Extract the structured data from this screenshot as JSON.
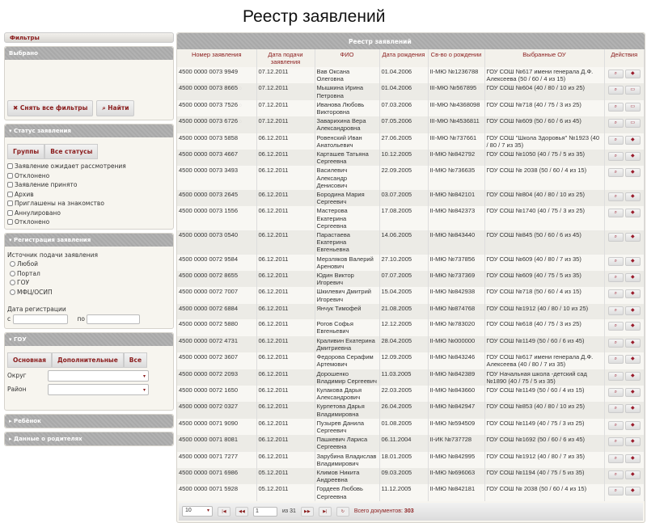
{
  "overlay_title": "Реестр заявлений",
  "filters": {
    "title": "Фильтры",
    "selected": {
      "title": "Выбрано",
      "clear_label": "Снять все фильтры",
      "find_label": "Найти"
    },
    "status": {
      "title": "Статус заявления",
      "groups_label": "Группы",
      "all_label": "Все статусы",
      "items": [
        "Заявление ожидает рассмотрения",
        "Отклонено",
        "Заявление принято",
        "Архив",
        "Приглашены на знакомство",
        "Аннулировано",
        "Отклонено"
      ]
    },
    "registration": {
      "title": "Регистрация заявления",
      "source_label": "Источник подачи заявления",
      "sources": [
        "Любой",
        "Портал",
        "ГОУ",
        "МФЦ/ОСИП"
      ],
      "date_label": "Дата регистрации",
      "from_label": "с",
      "to_label": "по",
      "from_value": "",
      "to_value": ""
    },
    "gou": {
      "title": "ГОУ",
      "tabs": [
        "Основная",
        "Дополнительные",
        "Все"
      ],
      "okrug_label": "Округ",
      "rayon_label": "Район",
      "okrug_value": "",
      "rayon_value": ""
    },
    "child": {
      "title": "Ребёнок"
    },
    "parents": {
      "title": "Данные о родителях"
    }
  },
  "registry": {
    "title": "Реестр заявлений",
    "columns": [
      "Номер заявления",
      "Дата подачи заявления",
      "ФИО",
      "Дата рождения",
      "Св-во о рождении",
      "Выбранные ОУ",
      "Действия"
    ],
    "rows": [
      [
        "4500 0000 0073 9949",
        "07.12.2011",
        "Вав Оксана Олеговна",
        "01.04.2006",
        "II-МЮ №1236788",
        "ГОУ СОШ №617 имени генерала Д.Ф. Алексеева (50 / 60 / 4 из 15)",
        false
      ],
      [
        "4500 0000 0073 8665",
        "07.12.2011",
        "Мышкина Ирина Петровна",
        "01.04.2006",
        "III-МЮ №567895",
        "ГОУ СОШ №604 (40 / 80 / 10 из 25)",
        true
      ],
      [
        "4500 0000 0073 7526",
        "07.12.2011",
        "Иванова Любовь Викторовна",
        "07.03.2006",
        "III-МЮ №4368098",
        "ГОУ СОШ №718 (40 / 75 / 3 из 25)",
        true
      ],
      [
        "4500 0000 0073 6726",
        "07.12.2011",
        "Заварихина Вера Александровна",
        "07.05.2006",
        "III-МЮ №4536811",
        "ГОУ СОШ №609 (50 / 60 / 6 из 45)",
        true
      ],
      [
        "4500 0000 0073 5858",
        "06.12.2011",
        "Ровенский Иван Анатольевич",
        "27.06.2005",
        "III-МЮ №737661",
        "ГОУ СОШ \"Школа Здоровья\" №1923 (40 / 80 / 7 из 35)",
        false
      ],
      [
        "4500 0000 0073 4667",
        "06.12.2011",
        "Карташев Татьяна Сергеевна",
        "10.12.2005",
        "II-МЮ №842792",
        "ГОУ СОШ №1050 (40 / 75 / 5 из 35)",
        false
      ],
      [
        "4500 0000 0073 3493",
        "06.12.2011",
        "Василевич Александр Денисович",
        "22.09.2005",
        "II-МЮ №736635",
        "ГОУ СОШ № 2038 (50 / 60 / 4 из 15)",
        false
      ],
      [
        "4500 0000 0073 2645",
        "06.12.2011",
        "Бородина Мария Сергеевич",
        "03.07.2005",
        "II-МЮ №842101",
        "ГОУ СОШ №804 (40 / 80 / 10 из 25)",
        false
      ],
      [
        "4500 0000 0073 1556",
        "06.12.2011",
        "Мастерова Екатерина Сергеевна",
        "17.08.2005",
        "II-МЮ №842373",
        "ГОУ СОШ №1740 (40 / 75 / 3 из 25)",
        false
      ],
      [
        "4500 0000 0073 0540",
        "06.12.2011",
        "Парастаева Екатерина Евгеньевна",
        "14.06.2005",
        "II-МЮ №843440",
        "ГОУ СОШ №845 (50 / 60 / 6 из 45)",
        false
      ],
      [
        "4500 0000 0072 9584",
        "06.12.2011",
        "Мерзляков Валерий Аренович",
        "27.10.2005",
        "II-МЮ №737856",
        "ГОУ СОШ №609 (40 / 80 / 7 из 35)",
        false
      ],
      [
        "4500 0000 0072 8655",
        "06.12.2011",
        "Юдин Виктор Игоревич",
        "07.07.2005",
        "II-МЮ №737369",
        "ГОУ СОШ №609 (40 / 75 / 5 из 35)",
        false
      ],
      [
        "4500 0000 0072 7007",
        "06.12.2011",
        "Шкилевич Дмитрий Игоревич",
        "15.04.2005",
        "II-МЮ №842938",
        "ГОУ СОШ №718 (50 / 60 / 4 из 15)",
        false
      ],
      [
        "4500 0000 0072 6884",
        "06.12.2011",
        "Янчук Тимофей",
        "21.08.2005",
        "II-МЮ №874768",
        "ГОУ СОШ №1912 (40 / 80 / 10 из 25)",
        false
      ],
      [
        "4500 0000 0072 5880",
        "06.12.2011",
        "Рогов Софья Евгеньевич",
        "12.12.2005",
        "II-МЮ №783020",
        "ГОУ СОШ №618 (40 / 75 / 3 из 25)",
        false
      ],
      [
        "4500 0000 0072 4731",
        "06.12.2011",
        "Краливин Екатерина Дмитриевна",
        "28.04.2005",
        "II-МЮ №000000",
        "ГОУ СОШ №1149 (50 / 60 / 6 из 45)",
        false
      ],
      [
        "4500 0000 0072 3607",
        "06.12.2011",
        "Федорова Серафим Артемович",
        "12.09.2005",
        "II-МЮ №843246",
        "ГОУ СОШ №617 имени генерала Д.Ф. Алексеева (40 / 80 / 7 из 35)",
        false
      ],
      [
        "4500 0000 0072 2093",
        "06.12.2011",
        "Дорошенко Владимир Сергеевич",
        "11.03.2005",
        "II-МЮ №842389",
        "ГОУ Начальная школа -детский сад №1890 (40 / 75 / 5 из 35)",
        false
      ],
      [
        "4500 0000 0072 1650",
        "06.12.2011",
        "Кулакова Дарья Александрович",
        "22.03.2005",
        "II-МЮ №843660",
        "ГОУ СОШ №1149 (50 / 60 / 4 из 15)",
        false
      ],
      [
        "4500 0000 0072 0327",
        "06.12.2011",
        "Курпетова Дарья Владимировна",
        "26.04.2005",
        "II-МЮ №842947",
        "ГОУ СОШ №853 (40 / 80 / 10 из 25)",
        false
      ],
      [
        "4500 0000 0071 9090",
        "06.12.2011",
        "Пузырев Данила Сергеевич",
        "01.08.2005",
        "II-МЮ №594509",
        "ГОУ СОШ №1149 (40 / 75 / 3 из 25)",
        false
      ],
      [
        "4500 0000 0071 8081",
        "06.12.2011",
        "Пашкевич Лариса Сергеевна",
        "06.11.2004",
        "II-ИК №737728",
        "ГОУ СОШ №1692 (50 / 60 / 6 из 45)",
        false
      ],
      [
        "4500 0000 0071 7277",
        "06.12.2011",
        "Зарубина Владислав Владимирович",
        "18.01.2005",
        "II-МЮ №842995",
        "ГОУ СОШ №1912 (40 / 80 / 7 из 35)",
        false
      ],
      [
        "4500 0000 0071 6986",
        "05.12.2011",
        "Климов Никита Андреевна",
        "09.03.2005",
        "II-МЮ №696063",
        "ГОУ СОШ №1194 (40 / 75 / 5 из 35)",
        false
      ],
      [
        "4500 0000 0071 5928",
        "05.12.2011",
        "Гордеев Любовь Сергеевна",
        "11.12.2005",
        "II-МЮ №842181",
        "ГОУ СОШ № 2038 (50 / 60 / 4 из 15)",
        false
      ]
    ]
  },
  "pager": {
    "page_size": "10",
    "page": "1",
    "of_label": "из 31",
    "total_label": "Всего документов:",
    "total": "303"
  }
}
